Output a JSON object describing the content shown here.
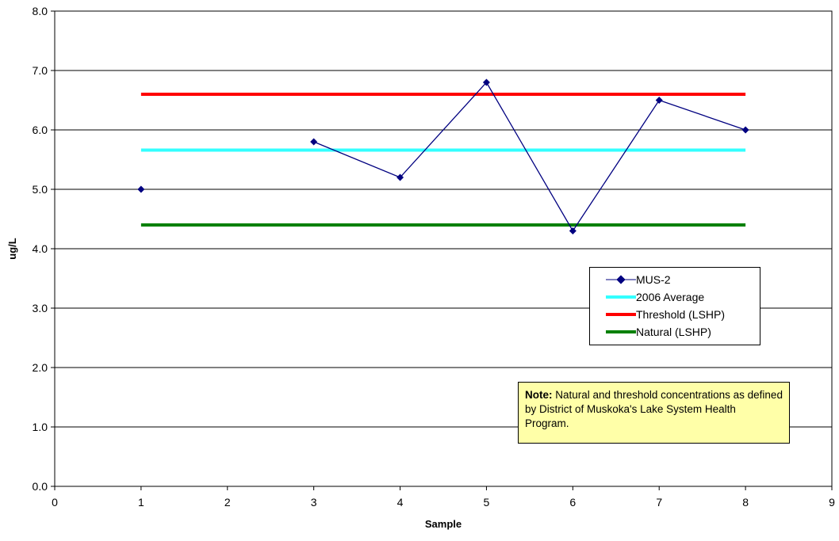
{
  "chart_data": {
    "type": "line",
    "title": "",
    "xlabel": "Sample",
    "ylabel": "ug/L",
    "xlim": [
      0,
      9
    ],
    "ylim": [
      0.0,
      8.0
    ],
    "x_ticks": [
      "0",
      "1",
      "2",
      "3",
      "4",
      "5",
      "6",
      "7",
      "8",
      "9"
    ],
    "y_ticks": [
      "0.0",
      "1.0",
      "2.0",
      "3.0",
      "4.0",
      "5.0",
      "6.0",
      "7.0",
      "8.0"
    ],
    "grid": "horizontal",
    "legend_position": "right",
    "series": [
      {
        "name": "MUS-2",
        "color": "#000080",
        "marker": "diamond",
        "segments": [
          [
            [
              1,
              5.0
            ]
          ],
          [
            [
              3,
              5.8
            ],
            [
              4,
              5.2
            ],
            [
              5,
              6.8
            ],
            [
              6,
              4.3
            ],
            [
              7,
              6.5
            ],
            [
              8,
              6.0
            ]
          ]
        ]
      },
      {
        "name": "2006 Average",
        "color": "#33ffff",
        "x": [
          1,
          8
        ],
        "values": [
          5.66,
          5.66
        ]
      },
      {
        "name": "Threshold (LSHP)",
        "color": "#ff0000",
        "x": [
          1,
          8
        ],
        "values": [
          6.6,
          6.6
        ]
      },
      {
        "name": "Natural (LSHP)",
        "color": "#008000",
        "x": [
          1,
          8
        ],
        "values": [
          4.4,
          4.4
        ]
      }
    ],
    "annotation": {
      "bold": "Note:",
      "text": "Natural and threshold concentrations as defined by District of Muskoka's Lake System Health Program."
    }
  }
}
